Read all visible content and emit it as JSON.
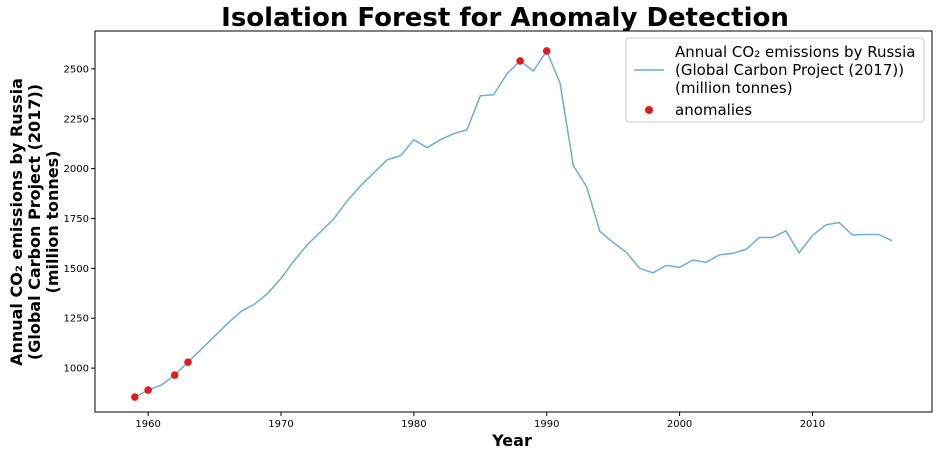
{
  "chart_data": {
    "type": "line",
    "title": "Isolation Forest for Anomaly Detection",
    "xlabel": "Year",
    "ylabel_lines": [
      "Annual CO₂ emissions by Russia",
      "(Global Carbon Project (2017))",
      "(million tonnes)"
    ],
    "xlim": [
      1956,
      2019
    ],
    "ylim": [
      780,
      2690
    ],
    "xticks": [
      1960,
      1970,
      1980,
      1990,
      2000,
      2010
    ],
    "yticks": [
      1000,
      1250,
      1500,
      1750,
      2000,
      2250,
      2500
    ],
    "grid": false,
    "legend_position": "top-right",
    "series": [
      {
        "name_lines": [
          "Annual CO₂ emissions by Russia",
          "(Global Carbon Project (2017))",
          "(million tonnes)"
        ],
        "color": "#6baed6",
        "x": [
          1959,
          1960,
          1961,
          1962,
          1963,
          1964,
          1965,
          1966,
          1967,
          1968,
          1969,
          1970,
          1971,
          1972,
          1973,
          1974,
          1975,
          1976,
          1977,
          1978,
          1979,
          1980,
          1981,
          1982,
          1983,
          1984,
          1985,
          1986,
          1987,
          1988,
          1989,
          1990,
          1991,
          1992,
          1993,
          1994,
          1995,
          1996,
          1997,
          1998,
          1999,
          2000,
          2001,
          2002,
          2003,
          2004,
          2005,
          2006,
          2007,
          2008,
          2009,
          2010,
          2011,
          2012,
          2013,
          2014,
          2015,
          2016
        ],
        "y": [
          855,
          890,
          915,
          965,
          1030,
          1095,
          1160,
          1225,
          1285,
          1320,
          1375,
          1450,
          1540,
          1620,
          1685,
          1750,
          1840,
          1915,
          1980,
          2045,
          2065,
          2145,
          2105,
          2145,
          2175,
          2195,
          2365,
          2370,
          2475,
          2540,
          2490,
          2590,
          2430,
          2015,
          1910,
          1685,
          1630,
          1580,
          1500,
          1478,
          1515,
          1505,
          1542,
          1530,
          1568,
          1575,
          1595,
          1655,
          1655,
          1688,
          1578,
          1665,
          1718,
          1730,
          1668,
          1670,
          1670,
          1638
        ]
      }
    ],
    "anomalies": {
      "name": "anomalies",
      "color": "#e31a1c",
      "x": [
        1959,
        1960,
        1962,
        1963,
        1988,
        1990
      ],
      "y": [
        855,
        890,
        965,
        1030,
        2540,
        2590
      ]
    }
  }
}
